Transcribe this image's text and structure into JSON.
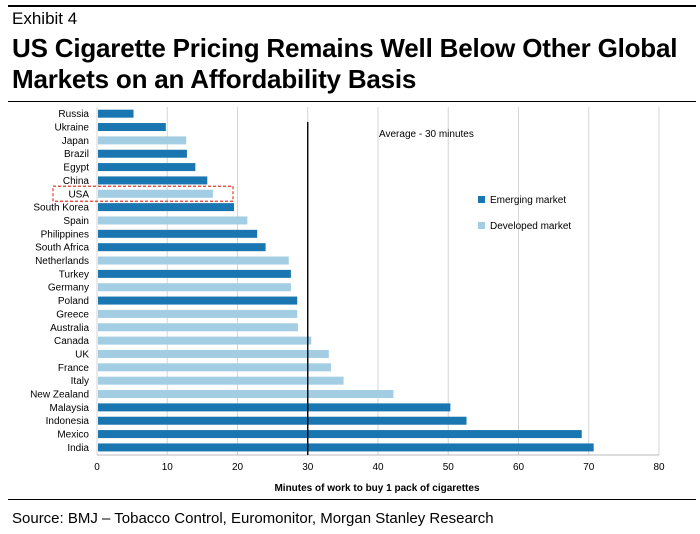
{
  "header": {
    "exhibit": "Exhibit 4",
    "title": "US Cigarette Pricing Remains Well Below Other Global Markets on an Affordability Basis"
  },
  "footer": {
    "source": "Source: BMJ – Tobacco Control, Euromonitor, Morgan Stanley Research"
  },
  "colors": {
    "emerging": "#1a76b0",
    "developed": "#a3cde3",
    "highlight": "#e8382a"
  },
  "chart_data": {
    "type": "bar",
    "orientation": "horizontal",
    "title": "",
    "xlabel": "Minutes of work to buy 1 pack of cigarettes",
    "ylabel": "",
    "xlim": [
      0,
      80
    ],
    "xticks": [
      0,
      10,
      20,
      30,
      40,
      50,
      60,
      70,
      80
    ],
    "categories": [
      "Russia",
      "Ukraine",
      "Japan",
      "Brazil",
      "Egypt",
      "China",
      "USA",
      "South Korea",
      "Spain",
      "Philippines",
      "South Africa",
      "Netherlands",
      "Turkey",
      "Germany",
      "Poland",
      "Greece",
      "Australia",
      "Canada",
      "UK",
      "France",
      "Italy",
      "New Zealand",
      "Malaysia",
      "Indonesia",
      "Mexico",
      "India"
    ],
    "values": [
      5.2,
      9.8,
      12.7,
      12.8,
      14.0,
      15.7,
      16.5,
      19.5,
      21.4,
      22.8,
      24.0,
      27.3,
      27.6,
      27.6,
      28.5,
      28.5,
      28.6,
      30.5,
      33.0,
      33.3,
      35.1,
      42.2,
      50.3,
      52.6,
      69.0,
      70.7
    ],
    "market": [
      "emerging",
      "emerging",
      "developed",
      "emerging",
      "emerging",
      "emerging",
      "developed",
      "emerging",
      "developed",
      "emerging",
      "emerging",
      "developed",
      "emerging",
      "developed",
      "emerging",
      "developed",
      "developed",
      "developed",
      "developed",
      "developed",
      "developed",
      "developed",
      "emerging",
      "emerging",
      "emerging",
      "emerging"
    ],
    "highlight": "USA",
    "average": 30,
    "average_label": "Average - 30 minutes",
    "legend": [
      {
        "key": "emerging",
        "label": "Emerging market"
      },
      {
        "key": "developed",
        "label": "Developed market"
      }
    ],
    "legend_position": "right"
  }
}
